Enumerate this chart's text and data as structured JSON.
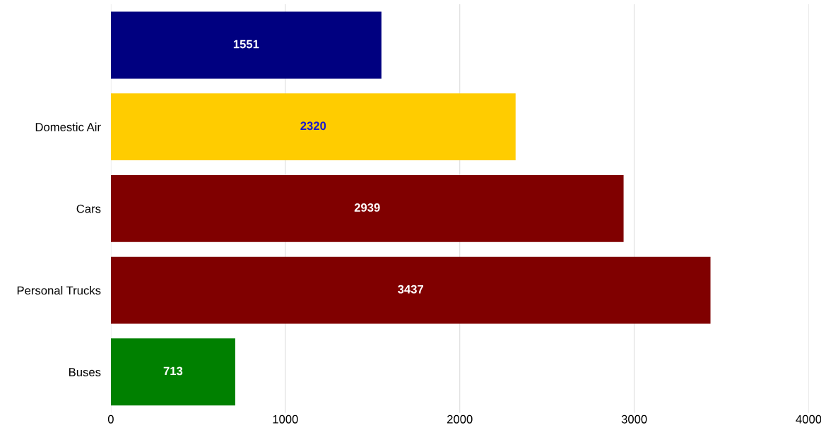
{
  "chart_data": {
    "type": "bar",
    "orientation": "horizontal",
    "categories": [
      null,
      "Domestic Air",
      "Cars",
      "Personal Trucks",
      "Buses"
    ],
    "values": [
      1551,
      2320,
      2939,
      3437,
      713
    ],
    "colors": [
      "#000080",
      "#ffcc00",
      "#800000",
      "#800000",
      "#008000"
    ],
    "data_labels": true,
    "xlim": [
      0,
      4000
    ],
    "xticks": [
      0,
      1000,
      2000,
      3000,
      4000
    ],
    "grid": "x"
  }
}
